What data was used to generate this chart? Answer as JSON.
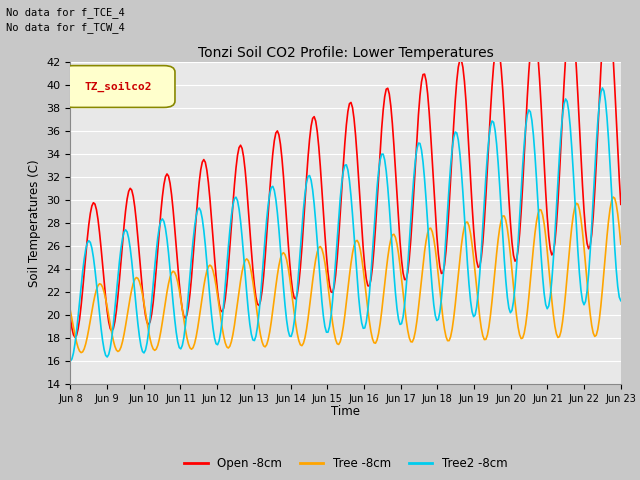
{
  "title": "Tonzi Soil CO2 Profile: Lower Temperatures",
  "ylabel": "Soil Temperatures (C)",
  "xlabel": "Time",
  "annotation1": "No data for f_TCE_4",
  "annotation2": "No data for f_TCW_4",
  "legend_label": "TZ_soilco2",
  "series_labels": [
    "Open -8cm",
    "Tree -8cm",
    "Tree2 -8cm"
  ],
  "series_colors": [
    "#ff0000",
    "#ffa500",
    "#00ccee"
  ],
  "xlim_start": 8,
  "xlim_end": 23,
  "ylim": [
    14,
    42
  ],
  "yticks": [
    14,
    16,
    18,
    20,
    22,
    24,
    26,
    28,
    30,
    32,
    34,
    36,
    38,
    40,
    42
  ],
  "xtick_labels": [
    "Jun 8",
    "Jun 9",
    "Jun 10",
    "Jun 11",
    "Jun 12",
    "Jun 13",
    "Jun 14",
    "Jun 15",
    "Jun 16",
    "Jun 17",
    "Jun 18",
    "Jun 19",
    "Jun 20",
    "Jun 21",
    "Jun 22",
    "Jun 23"
  ],
  "xtick_positions": [
    8,
    9,
    10,
    11,
    12,
    13,
    14,
    15,
    16,
    17,
    18,
    19,
    20,
    21,
    22,
    23
  ],
  "plot_bg_color": "#e8e8e8",
  "fig_bg_color": "#c8c8c8",
  "grid_color": "#ffffff",
  "line_width": 1.2
}
